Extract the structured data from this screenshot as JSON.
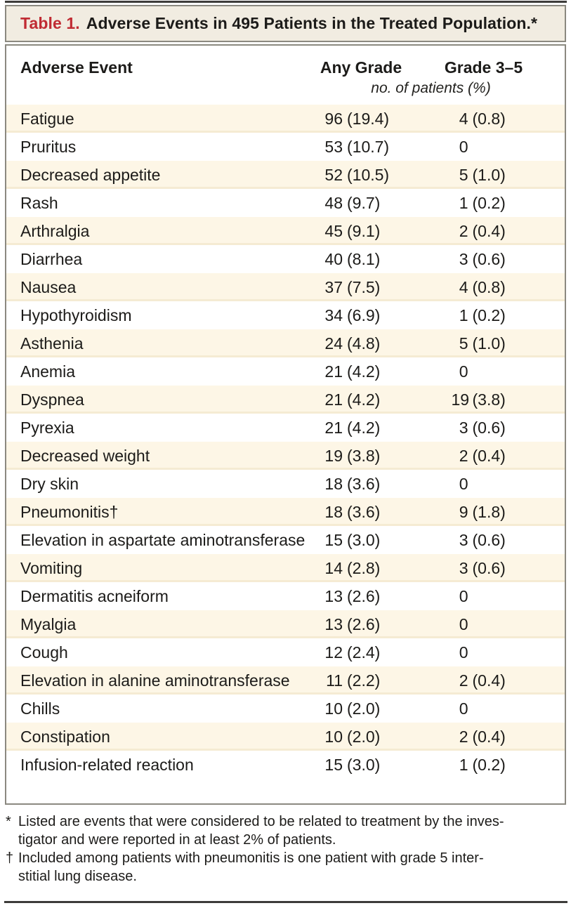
{
  "title": {
    "label": "Table 1.",
    "text": "Adverse Events in 495 Patients in the Treated Population.*"
  },
  "columns": {
    "event": "Adverse Event",
    "any_grade": "Any Grade",
    "grade_3_5": "Grade 3–5"
  },
  "units_note": "no. of patients (%)",
  "rows": [
    {
      "event": "Fatigue",
      "any_grade": "96 (19.4)",
      "grade_3_5": "4 (0.8)"
    },
    {
      "event": "Pruritus",
      "any_grade": "53 (10.7)",
      "grade_3_5": "0"
    },
    {
      "event": "Decreased appetite",
      "any_grade": "52 (10.5)",
      "grade_3_5": "5 (1.0)"
    },
    {
      "event": "Rash",
      "any_grade": "48 (9.7)",
      "grade_3_5": "1 (0.2)"
    },
    {
      "event": "Arthralgia",
      "any_grade": "45 (9.1)",
      "grade_3_5": "2 (0.4)"
    },
    {
      "event": "Diarrhea",
      "any_grade": "40 (8.1)",
      "grade_3_5": "3 (0.6)"
    },
    {
      "event": "Nausea",
      "any_grade": "37 (7.5)",
      "grade_3_5": "4 (0.8)"
    },
    {
      "event": "Hypothyroidism",
      "any_grade": "34 (6.9)",
      "grade_3_5": "1 (0.2)"
    },
    {
      "event": "Asthenia",
      "any_grade": "24 (4.8)",
      "grade_3_5": "5 (1.0)"
    },
    {
      "event": "Anemia",
      "any_grade": "21 (4.2)",
      "grade_3_5": "0"
    },
    {
      "event": "Dyspnea",
      "any_grade": "21 (4.2)",
      "grade_3_5": "19 (3.8)"
    },
    {
      "event": "Pyrexia",
      "any_grade": "21 (4.2)",
      "grade_3_5": "3 (0.6)"
    },
    {
      "event": "Decreased weight",
      "any_grade": "19 (3.8)",
      "grade_3_5": "2 (0.4)"
    },
    {
      "event": "Dry skin",
      "any_grade": "18 (3.6)",
      "grade_3_5": "0"
    },
    {
      "event": "Pneumonitis†",
      "any_grade": "18 (3.6)",
      "grade_3_5": "9 (1.8)"
    },
    {
      "event": "Elevation in aspartate aminotransferase",
      "any_grade": "15 (3.0)",
      "grade_3_5": "3 (0.6)"
    },
    {
      "event": "Vomiting",
      "any_grade": "14 (2.8)",
      "grade_3_5": "3 (0.6)"
    },
    {
      "event": "Dermatitis acneiform",
      "any_grade": "13 (2.6)",
      "grade_3_5": "0"
    },
    {
      "event": "Myalgia",
      "any_grade": "13 (2.6)",
      "grade_3_5": "0"
    },
    {
      "event": "Cough",
      "any_grade": "12 (2.4)",
      "grade_3_5": "0"
    },
    {
      "event": "Elevation in alanine aminotransferase",
      "any_grade": "11 (2.2)",
      "grade_3_5": "2 (0.4)"
    },
    {
      "event": "Chills",
      "any_grade": "10 (2.0)",
      "grade_3_5": "0"
    },
    {
      "event": "Constipation",
      "any_grade": "10 (2.0)",
      "grade_3_5": "2 (0.4)"
    },
    {
      "event": "Infusion-related reaction",
      "any_grade": "15 (3.0)",
      "grade_3_5": "1 (0.2)"
    }
  ],
  "footnotes": [
    {
      "symbol": "*",
      "lines": [
        "Listed are events that were considered to be related to treatment by the inves-",
        "tigator and were reported in at least 2% of patients."
      ]
    },
    {
      "symbol": "†",
      "lines": [
        "Included among patients with pneumonitis is one patient with grade 5 inter-",
        "stitial lung disease."
      ]
    }
  ],
  "colors": {
    "accent_red": "#c02b33",
    "title_bar_bg": "#f1ece1",
    "row_shade": "#fdf6e6",
    "border_gray": "#8b8980",
    "rule_dark": "#3d3c3a"
  }
}
